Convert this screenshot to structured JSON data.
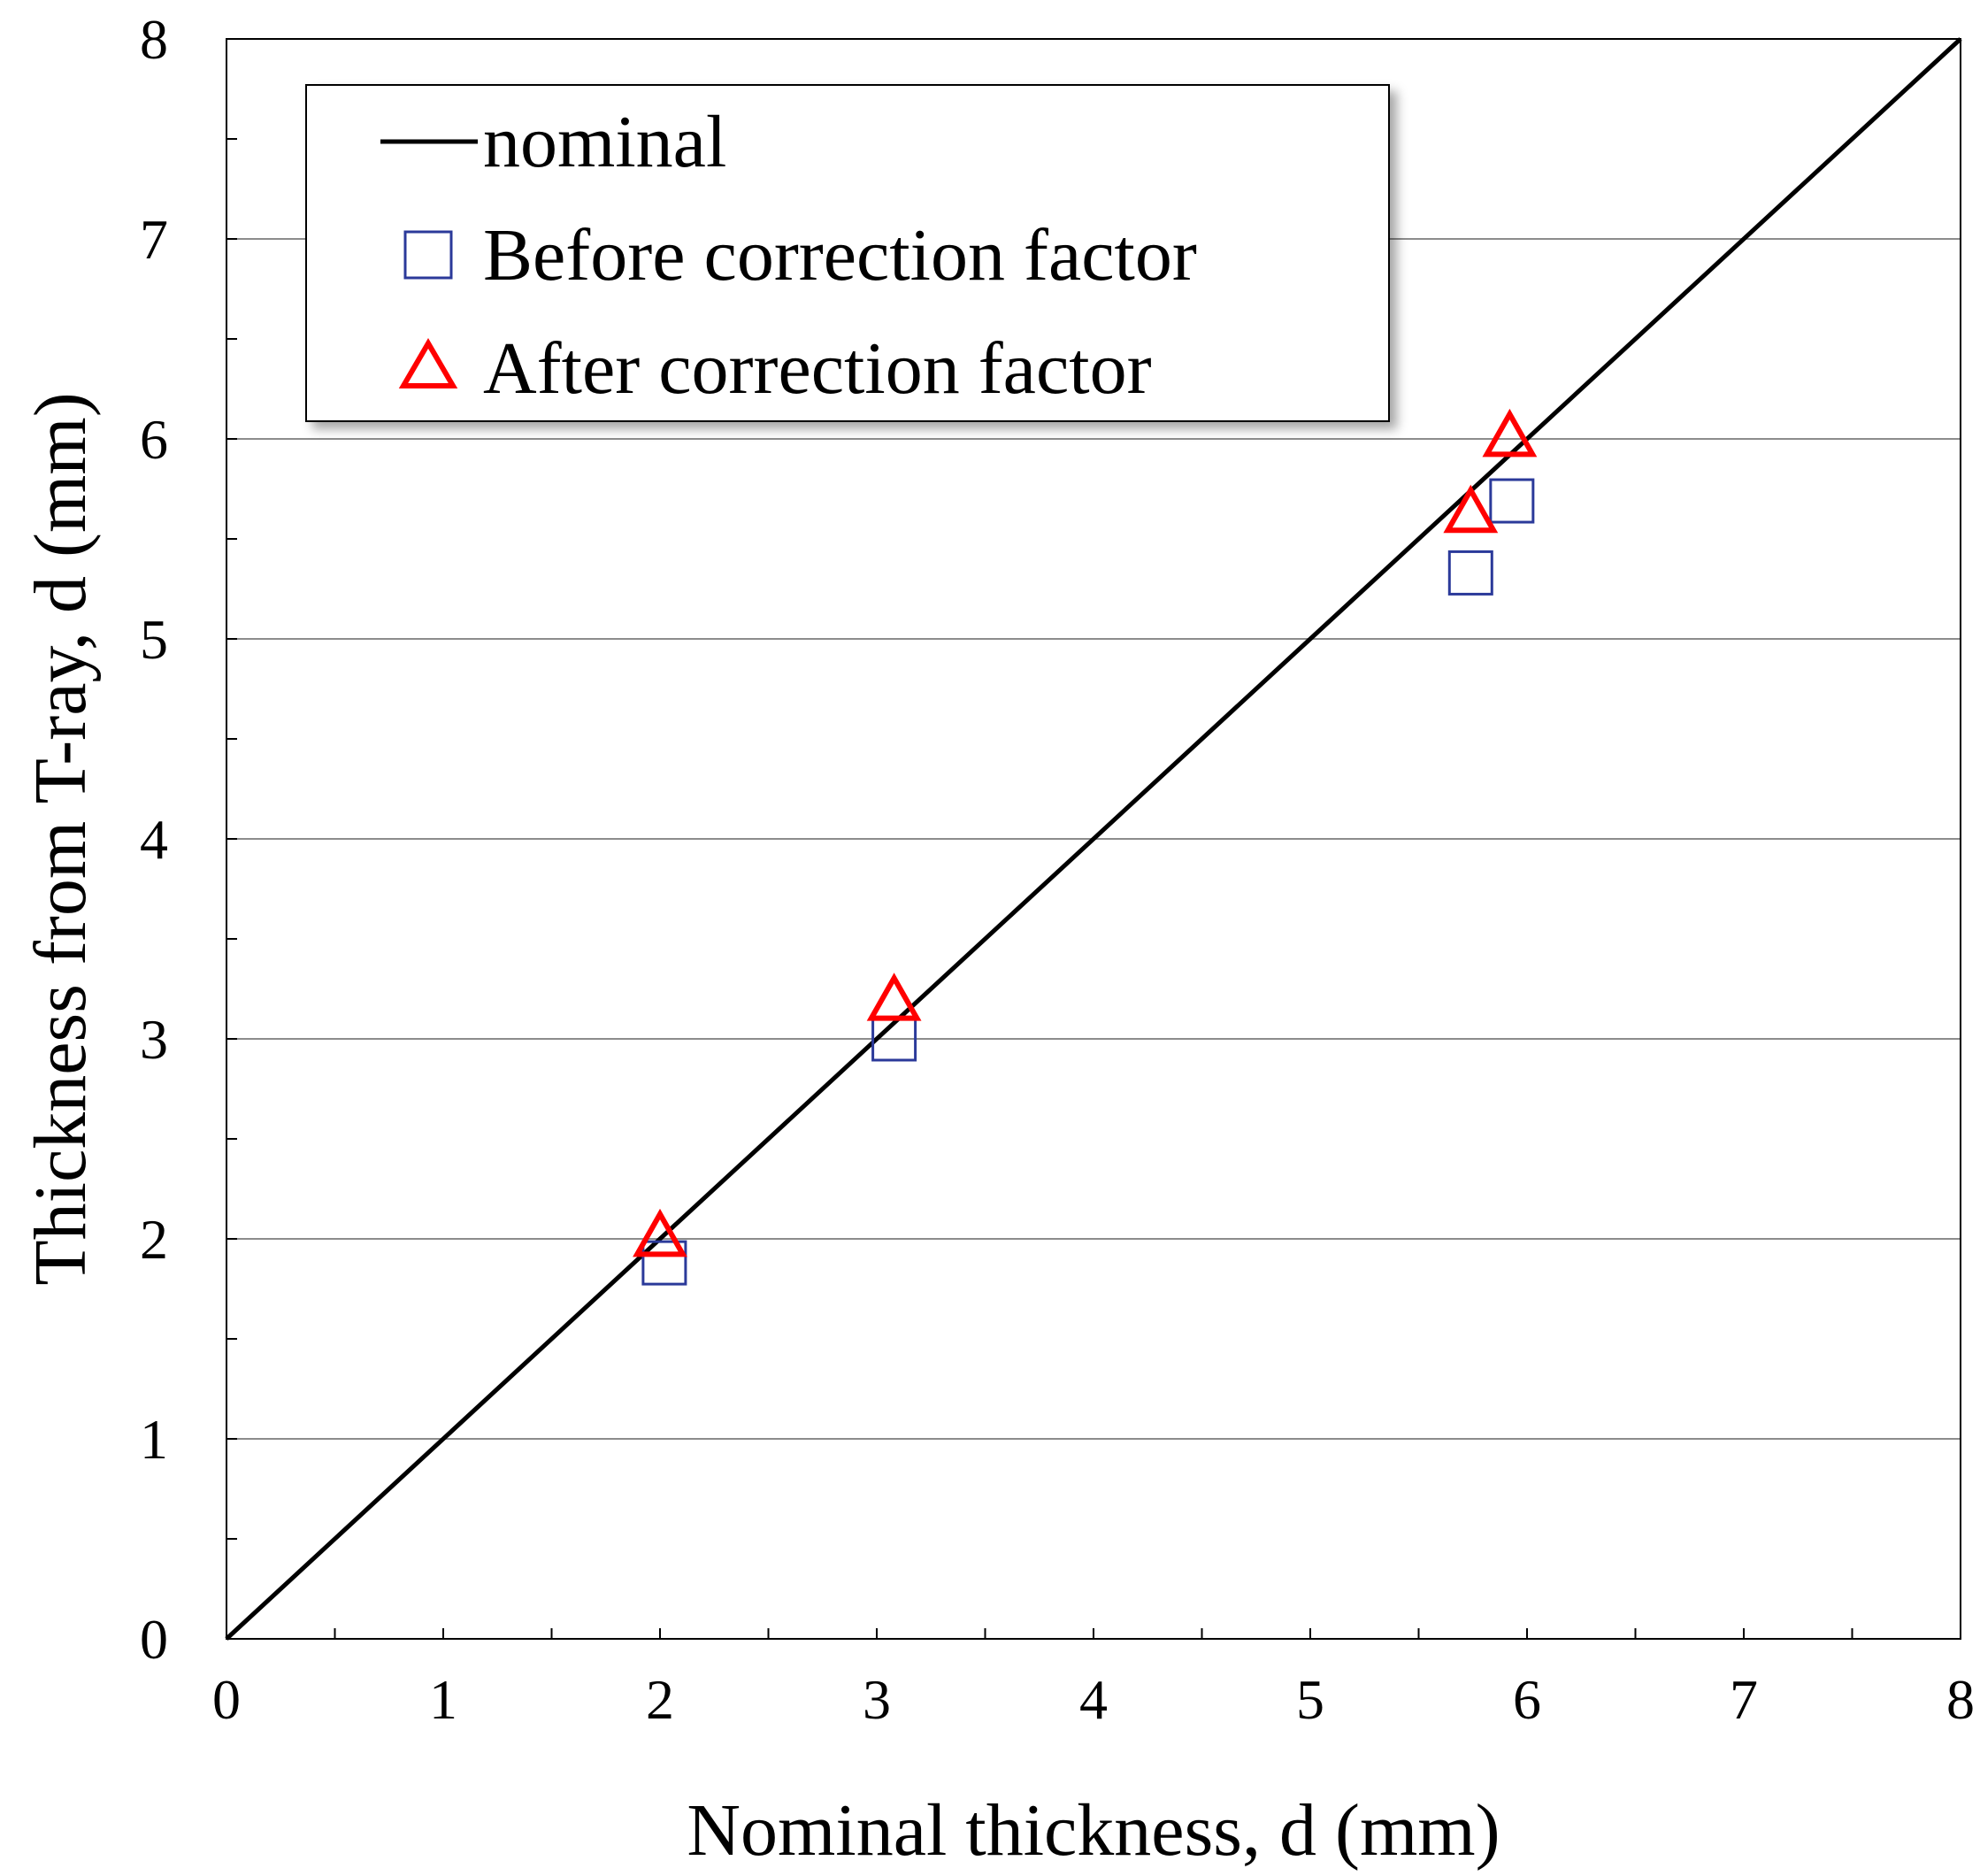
{
  "chart_data": {
    "type": "scatter",
    "title": "",
    "xlabel": "Nominal thickness, d (mm)",
    "ylabel": "Thickness from T-ray, d (mm)",
    "xlim": [
      0,
      8
    ],
    "ylim": [
      0,
      8
    ],
    "x_ticks": [
      0,
      1,
      2,
      3,
      4,
      5,
      6,
      7,
      8
    ],
    "y_ticks": [
      0,
      1,
      2,
      3,
      4,
      5,
      6,
      7,
      8
    ],
    "x_tick_labels": [
      "0",
      "1",
      "2",
      "3",
      "4",
      "5",
      "6",
      "7",
      "8"
    ],
    "y_tick_labels": [
      "0",
      "1",
      "2",
      "3",
      "4",
      "5",
      "6",
      "7",
      "8"
    ],
    "grid": "horizontal",
    "legend_position": "top-left",
    "series": [
      {
        "name": "nominal",
        "kind": "line",
        "color": "#000000",
        "x": [
          0,
          8
        ],
        "y": [
          0,
          8
        ]
      },
      {
        "name": "Before correction factor",
        "kind": "marker",
        "marker": "square",
        "color": "#2B3A9A",
        "x": [
          2.02,
          3.08,
          5.74,
          5.93
        ],
        "y": [
          1.88,
          3.0,
          5.33,
          5.69
        ]
      },
      {
        "name": "After correction factor",
        "kind": "marker",
        "marker": "triangle",
        "color": "#FF0000",
        "x": [
          2.0,
          3.08,
          5.74,
          5.92
        ],
        "y": [
          2.0,
          3.18,
          5.62,
          6.0
        ]
      }
    ]
  }
}
